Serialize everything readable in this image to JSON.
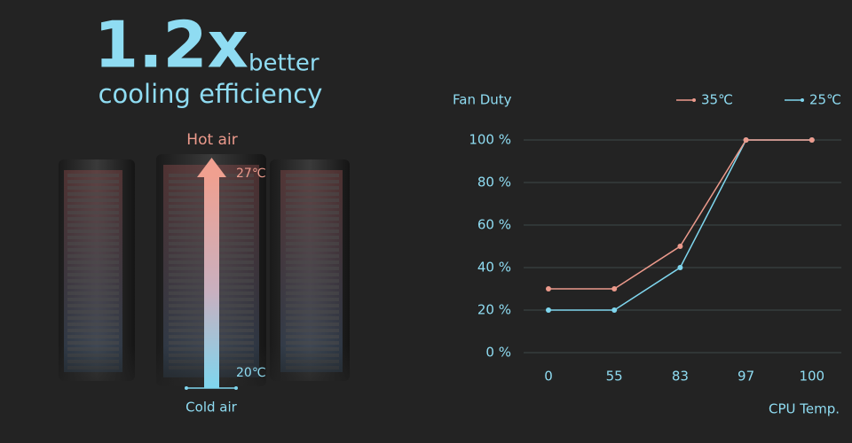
{
  "hero": {
    "headline": "1.2x",
    "suffix": "better",
    "subtitle": "cooling efficiency"
  },
  "illustration": {
    "hot_label": "Hot air",
    "top_temp": "27℃",
    "bottom_temp": "20℃",
    "cold_label": "Cold air"
  },
  "chart_data": {
    "type": "line",
    "y_label": "Fan Duty",
    "x_label": "CPU Temp.",
    "categories": [
      "0",
      "55",
      "83",
      "97",
      "100"
    ],
    "series": [
      {
        "name": "25℃",
        "color": "#7fd6ee",
        "values": [
          20,
          20,
          40,
          100,
          100
        ]
      },
      {
        "name": "35℃",
        "color": "#ec9a8c",
        "values": [
          30,
          30,
          50,
          100,
          100
        ]
      }
    ],
    "ylim": [
      0,
      100
    ],
    "yticks": [
      {
        "value": 0,
        "label": "0 %"
      },
      {
        "value": 20,
        "label": "20 %"
      },
      {
        "value": 40,
        "label": "40 %"
      },
      {
        "value": 60,
        "label": "60 %"
      },
      {
        "value": 80,
        "label": "80 %"
      },
      {
        "value": 100,
        "label": "100 %"
      }
    ],
    "grid": true
  }
}
